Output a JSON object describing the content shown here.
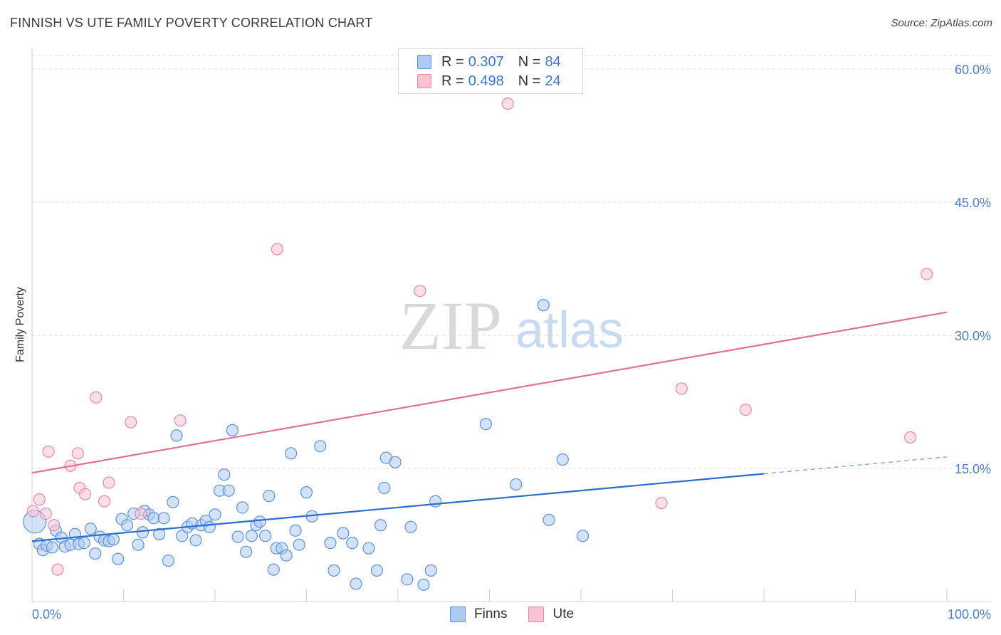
{
  "header": {
    "title": "FINNISH VS UTE FAMILY POVERTY CORRELATION CHART",
    "source": "Source: ZipAtlas.com"
  },
  "legend": {
    "finns": {
      "r_label": "R =",
      "r_value": "0.307",
      "n_label": "N =",
      "n_value": "84"
    },
    "ute": {
      "r_label": "R =",
      "r_value": "0.498",
      "n_label": "N =",
      "n_value": "24"
    }
  },
  "bottom_legend": {
    "finns": "Finns",
    "ute": "Ute"
  },
  "colors": {
    "finns_fill": "#aecbf2",
    "finns_stroke": "#5b93d9",
    "finns_line": "#2a6fcf",
    "ute_fill": "#f8c3d3",
    "ute_stroke": "#e88aa8",
    "ute_line": "#e07098",
    "tick_text": "#4a7fd0",
    "grid": "#dcdcdc"
  },
  "watermark": {
    "zip": "ZIP",
    "atlas": "atlas"
  },
  "chart_data": {
    "type": "scatter",
    "title": "FINNISH VS UTE FAMILY POVERTY CORRELATION CHART",
    "xlabel": "",
    "ylabel": "Family Poverty",
    "xlim": [
      0,
      100
    ],
    "ylim": [
      0,
      63
    ],
    "y_ticks": [
      15,
      30,
      45,
      60
    ],
    "y_tick_labels": [
      "15.0%",
      "30.0%",
      "45.0%",
      "60.0%"
    ],
    "x_tick_labels": [
      "0.0%",
      "100.0%"
    ],
    "grid": "horizontal dashed",
    "legend_placement": "top-center",
    "series": [
      {
        "name": "Finns",
        "points": [
          [
            0.3,
            9.0
          ],
          [
            0.8,
            6.5
          ],
          [
            1.2,
            5.8
          ],
          [
            1.6,
            6.3
          ],
          [
            2.2,
            6.1
          ],
          [
            2.6,
            8.0
          ],
          [
            3.2,
            7.2
          ],
          [
            3.6,
            6.2
          ],
          [
            4.2,
            6.4
          ],
          [
            4.7,
            7.6
          ],
          [
            5.1,
            6.5
          ],
          [
            5.7,
            6.6
          ],
          [
            6.4,
            8.2
          ],
          [
            6.9,
            5.4
          ],
          [
            7.4,
            7.3
          ],
          [
            7.9,
            6.9
          ],
          [
            8.4,
            6.8
          ],
          [
            8.9,
            7.0
          ],
          [
            9.4,
            4.8
          ],
          [
            9.8,
            9.3
          ],
          [
            10.4,
            8.6
          ],
          [
            11.1,
            9.9
          ],
          [
            11.6,
            6.4
          ],
          [
            12.1,
            7.8
          ],
          [
            12.3,
            10.2
          ],
          [
            12.8,
            9.8
          ],
          [
            13.3,
            9.4
          ],
          [
            13.9,
            7.6
          ],
          [
            14.4,
            9.4
          ],
          [
            14.9,
            4.6
          ],
          [
            15.4,
            11.2
          ],
          [
            15.8,
            18.7
          ],
          [
            16.4,
            7.4
          ],
          [
            17.0,
            8.4
          ],
          [
            17.5,
            8.8
          ],
          [
            17.9,
            6.9
          ],
          [
            18.5,
            8.6
          ],
          [
            19.0,
            9.1
          ],
          [
            19.4,
            8.4
          ],
          [
            20.0,
            9.8
          ],
          [
            20.5,
            12.5
          ],
          [
            21.0,
            14.3
          ],
          [
            21.5,
            12.5
          ],
          [
            21.9,
            19.3
          ],
          [
            22.5,
            7.3
          ],
          [
            23.0,
            10.6
          ],
          [
            23.4,
            5.6
          ],
          [
            24.0,
            7.4
          ],
          [
            24.5,
            8.6
          ],
          [
            24.9,
            9.0
          ],
          [
            25.5,
            7.4
          ],
          [
            25.9,
            11.9
          ],
          [
            26.4,
            3.6
          ],
          [
            26.7,
            6.0
          ],
          [
            27.3,
            6.0
          ],
          [
            27.8,
            5.2
          ],
          [
            28.3,
            16.7
          ],
          [
            28.8,
            8.0
          ],
          [
            29.2,
            6.4
          ],
          [
            30.0,
            12.3
          ],
          [
            30.6,
            9.6
          ],
          [
            31.5,
            17.5
          ],
          [
            32.6,
            6.6
          ],
          [
            33.0,
            3.5
          ],
          [
            34.0,
            7.7
          ],
          [
            35.0,
            6.6
          ],
          [
            35.4,
            2.0
          ],
          [
            36.8,
            6.0
          ],
          [
            37.7,
            3.5
          ],
          [
            38.1,
            8.6
          ],
          [
            38.5,
            12.8
          ],
          [
            38.7,
            16.2
          ],
          [
            39.7,
            15.7
          ],
          [
            41.0,
            2.5
          ],
          [
            41.4,
            8.4
          ],
          [
            42.8,
            1.9
          ],
          [
            43.6,
            3.5
          ],
          [
            44.1,
            11.3
          ],
          [
            49.6,
            20.0
          ],
          [
            52.9,
            13.2
          ],
          [
            55.9,
            33.4
          ],
          [
            56.5,
            9.2
          ],
          [
            58.0,
            16.0
          ],
          [
            60.2,
            7.4
          ]
        ],
        "trend": {
          "x": [
            0,
            80,
            100
          ],
          "y": [
            6.8,
            14.4,
            16.3
          ],
          "solid_until": 80
        }
      },
      {
        "name": "Ute",
        "points": [
          [
            0.1,
            10.2
          ],
          [
            0.8,
            11.5
          ],
          [
            1.5,
            9.9
          ],
          [
            1.8,
            16.9
          ],
          [
            2.4,
            8.6
          ],
          [
            2.8,
            3.6
          ],
          [
            4.2,
            15.3
          ],
          [
            5.0,
            16.7
          ],
          [
            5.2,
            12.8
          ],
          [
            5.8,
            12.1
          ],
          [
            7.0,
            23.0
          ],
          [
            7.9,
            11.3
          ],
          [
            8.4,
            13.4
          ],
          [
            10.8,
            20.2
          ],
          [
            11.9,
            9.9
          ],
          [
            16.2,
            20.4
          ],
          [
            26.8,
            39.7
          ],
          [
            42.4,
            35.0
          ],
          [
            52.0,
            56.1
          ],
          [
            68.8,
            11.1
          ],
          [
            71.0,
            24.0
          ],
          [
            78.0,
            21.6
          ],
          [
            96.0,
            18.5
          ],
          [
            97.8,
            36.9
          ]
        ],
        "trend": {
          "x": [
            0,
            100
          ],
          "y": [
            14.5,
            32.6
          ]
        }
      }
    ]
  }
}
